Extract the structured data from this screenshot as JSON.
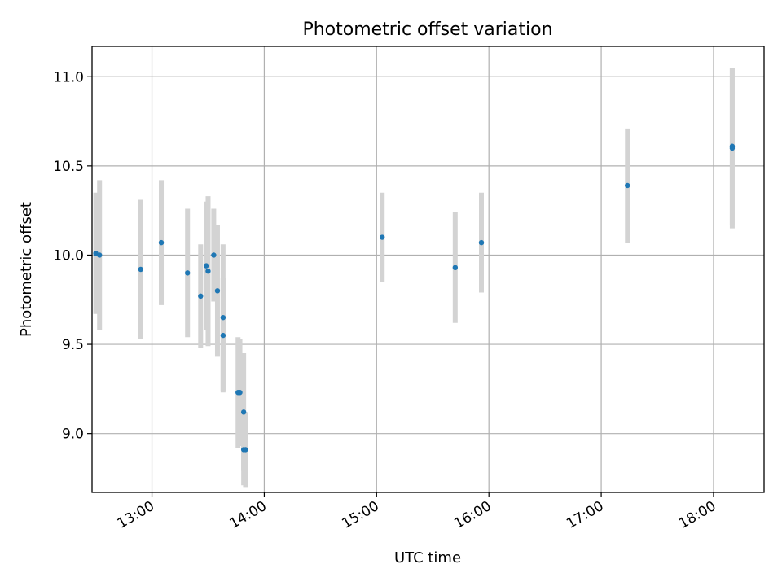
{
  "chart_data": {
    "type": "scatter",
    "title": "Photometric offset variation",
    "xlabel": "UTC time",
    "ylabel": "Photometric offset",
    "xlim": [
      "12:28",
      "18:27"
    ],
    "ylim": [
      8.67,
      11.17
    ],
    "x_ticks": [
      "13:00",
      "14:00",
      "15:00",
      "16:00",
      "17:00",
      "18:00"
    ],
    "y_ticks": [
      9.0,
      9.5,
      10.0,
      10.5,
      11.0
    ],
    "y_tick_labels": [
      "9.0",
      "9.5",
      "10.0",
      "10.5",
      "11.0"
    ],
    "grid": true,
    "marker_color": "#1f77b4",
    "errorbar_color": "#d3d3d3",
    "points": [
      {
        "x": "12:30",
        "y": 10.01,
        "yerr": 0.34
      },
      {
        "x": "12:32",
        "y": 10.0,
        "yerr": 0.42
      },
      {
        "x": "12:54",
        "y": 9.92,
        "yerr": 0.39
      },
      {
        "x": "13:05",
        "y": 10.07,
        "yerr": 0.35
      },
      {
        "x": "13:19",
        "y": 9.9,
        "yerr": 0.36
      },
      {
        "x": "13:26",
        "y": 9.77,
        "yerr": 0.29
      },
      {
        "x": "13:29",
        "y": 9.94,
        "yerr": 0.36
      },
      {
        "x": "13:30",
        "y": 9.91,
        "yerr": 0.42
      },
      {
        "x": "13:33",
        "y": 10.0,
        "yerr": 0.26
      },
      {
        "x": "13:35",
        "y": 9.8,
        "yerr": 0.37
      },
      {
        "x": "13:38",
        "y": 9.65,
        "yerr": 0.41
      },
      {
        "x": "13:38",
        "y": 9.55,
        "yerr": 0.32
      },
      {
        "x": "13:46",
        "y": 9.23,
        "yerr": 0.31
      },
      {
        "x": "13:47",
        "y": 9.23,
        "yerr": 0.3
      },
      {
        "x": "13:49",
        "y": 9.12,
        "yerr": 0.33
      },
      {
        "x": "13:49",
        "y": 8.91,
        "yerr": 0.2
      },
      {
        "x": "13:50",
        "y": 8.91,
        "yerr": 0.21
      },
      {
        "x": "15:03",
        "y": 10.1,
        "yerr": 0.25
      },
      {
        "x": "15:42",
        "y": 9.93,
        "yerr": 0.31
      },
      {
        "x": "15:56",
        "y": 10.07,
        "yerr": 0.28
      },
      {
        "x": "17:14",
        "y": 10.39,
        "yerr": 0.32
      },
      {
        "x": "18:10",
        "y": 10.61,
        "yerr": 0.44
      },
      {
        "x": "18:10",
        "y": 10.6,
        "yerr": 0.45
      }
    ]
  }
}
